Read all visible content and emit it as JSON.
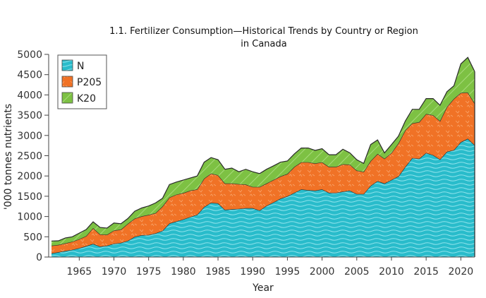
{
  "chart_data": {
    "type": "area",
    "stacked": true,
    "title": "1.1. Fertilizer Consumption—Historical Trends by Country or Region",
    "subtitle": "in Canada",
    "xlabel": "Year",
    "ylabel": "'000 tonnes nutrients",
    "xlim": [
      1961,
      2022
    ],
    "ylim": [
      0,
      5000
    ],
    "x_ticks": [
      1965,
      1970,
      1975,
      1980,
      1985,
      1990,
      1995,
      2000,
      2005,
      2010,
      2015,
      2020
    ],
    "y_ticks": [
      0,
      500,
      1000,
      1500,
      2000,
      2500,
      3000,
      3500,
      4000,
      4500,
      5000
    ],
    "y_tick_labels": [
      "0",
      "500",
      "1000",
      "1500",
      "2000",
      "2500",
      "3000",
      "3500",
      "4000",
      "4500",
      "5000"
    ],
    "grid": false,
    "legend_position": "top-left",
    "x": [
      1961,
      1962,
      1963,
      1964,
      1965,
      1966,
      1967,
      1968,
      1969,
      1970,
      1971,
      1972,
      1973,
      1974,
      1975,
      1976,
      1977,
      1978,
      1979,
      1980,
      1981,
      1982,
      1983,
      1984,
      1985,
      1986,
      1987,
      1988,
      1989,
      1990,
      1991,
      1992,
      1993,
      1994,
      1995,
      1996,
      1997,
      1998,
      1999,
      2000,
      2001,
      2002,
      2003,
      2004,
      2005,
      2006,
      2007,
      2008,
      2009,
      2010,
      2011,
      2012,
      2013,
      2014,
      2015,
      2016,
      2017,
      2018,
      2019,
      2020,
      2021,
      2022
    ],
    "series": [
      {
        "name": "N",
        "color": "#29bccb",
        "values": [
          90,
          120,
          150,
          180,
          220,
          270,
          325,
          260,
          280,
          330,
          350,
          400,
          500,
          540,
          545,
          585,
          650,
          830,
          880,
          930,
          990,
          1045,
          1235,
          1340,
          1325,
          1165,
          1180,
          1190,
          1205,
          1205,
          1150,
          1265,
          1350,
          1440,
          1500,
          1585,
          1670,
          1650,
          1640,
          1670,
          1585,
          1585,
          1615,
          1640,
          1555,
          1555,
          1760,
          1875,
          1815,
          1905,
          1990,
          2225,
          2445,
          2425,
          2570,
          2515,
          2410,
          2600,
          2640,
          2835,
          2920,
          2760
        ]
      },
      {
        "name": "P205",
        "color": "#f07226",
        "values": [
          190,
          180,
          190,
          200,
          220,
          250,
          390,
          300,
          270,
          325,
          330,
          420,
          450,
          465,
          495,
          500,
          600,
          640,
          660,
          650,
          650,
          625,
          700,
          720,
          695,
          650,
          635,
          610,
          585,
          525,
          580,
          550,
          555,
          550,
          550,
          640,
          670,
          690,
          670,
          670,
          640,
          640,
          675,
          640,
          580,
          550,
          610,
          670,
          610,
          665,
          815,
          900,
          855,
          905,
          960,
          985,
          945,
          1105,
          1265,
          1215,
          1140,
          1030
        ]
      },
      {
        "name": "K20",
        "color": "#7dc143",
        "values": [
          115,
          100,
          130,
          120,
          150,
          160,
          155,
          170,
          165,
          185,
          140,
          130,
          180,
          205,
          220,
          250,
          200,
          320,
          310,
          320,
          310,
          330,
          405,
          395,
          380,
          350,
          380,
          305,
          375,
          375,
          330,
          350,
          345,
          350,
          320,
          320,
          350,
          350,
          320,
          335,
          300,
          300,
          370,
          290,
          265,
          205,
          405,
          345,
          145,
          205,
          175,
          230,
          345,
          315,
          380,
          410,
          390,
          375,
          320,
          715,
          865,
          785
        ]
      }
    ]
  }
}
